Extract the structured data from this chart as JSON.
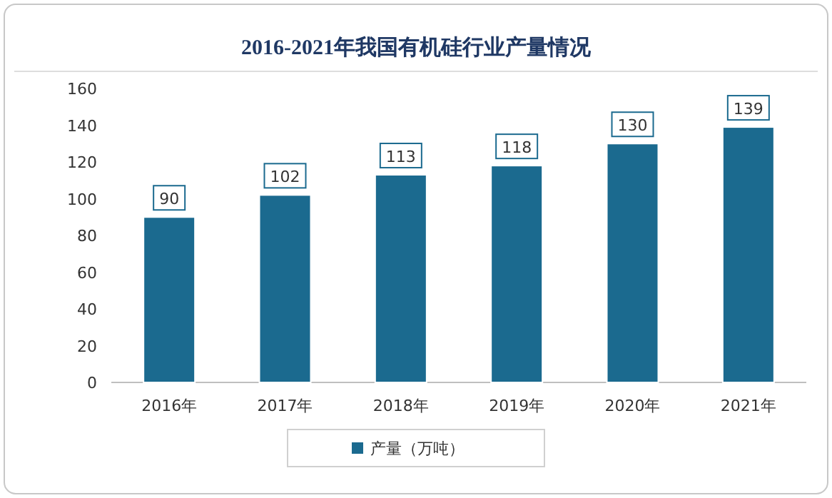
{
  "chart_data": {
    "type": "bar",
    "title": "2016-2021年我国有机硅行业产量情况",
    "categories": [
      "2016年",
      "2017年",
      "2018年",
      "2019年",
      "2020年",
      "2021年"
    ],
    "series": [
      {
        "name": "产量（万吨）",
        "color": "#1b6a8f",
        "values": [
          90,
          102,
          113,
          118,
          130,
          139
        ]
      }
    ],
    "ylim": [
      0,
      160
    ],
    "yticks": [
      0,
      20,
      40,
      60,
      80,
      100,
      120,
      140,
      160
    ],
    "data_labels": true,
    "legend": "bottom",
    "grid": false
  }
}
